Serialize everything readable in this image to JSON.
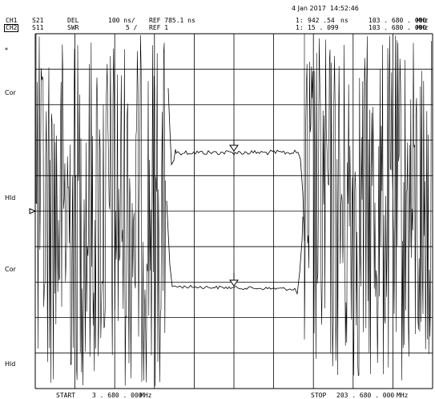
{
  "header": {
    "datetime": "4 Jan 2017  14:52:46",
    "ch1": {
      "label": "CH1",
      "param": "S21",
      "format": "DEL",
      "scale": "100 ns/",
      "ref": "REF 785.1 ns",
      "marker_index": "1:",
      "marker_value": "942 .54",
      "marker_unit": "ns",
      "marker_freq": "103 . 680 . 000",
      "freq_unit": "MHz"
    },
    "ch2": {
      "label": "CH2",
      "param": "S11",
      "format": "SWR",
      "scale": "5 /",
      "ref": "REF 1",
      "marker_index": "1:",
      "marker_value": "15 . 099",
      "marker_unit": "",
      "marker_freq": "103 . 680 . 000",
      "freq_unit": "MHz"
    }
  },
  "side_labels": {
    "asterisk": "*",
    "cor_top": "Cor",
    "hld_top": "Hld",
    "cor_bottom": "Cor",
    "hld_bottom": "Hld"
  },
  "footer": {
    "start_label": "START",
    "start_value": "3 . 680 . 000",
    "start_unit": "MHz",
    "stop_label": "STOP",
    "stop_value": "203 . 680 . 000",
    "stop_unit": "MHz"
  },
  "colors": {
    "trace": "#000000",
    "grid": "#000000",
    "background": "#ffffff"
  }
}
